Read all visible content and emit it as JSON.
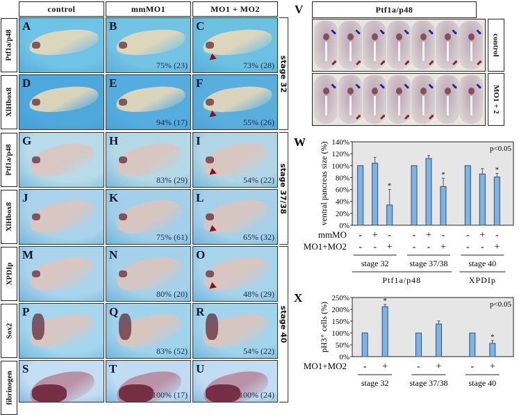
{
  "figure": {
    "column_headers": [
      "control",
      "mmMO1",
      "MO1 + MO2"
    ],
    "stage_labels": [
      "stage 32",
      "stage 37/38",
      "stage 40"
    ],
    "rows": [
      {
        "marker": "Ptf1a/p48",
        "stage": "stage 32",
        "panels": [
          {
            "letter": "A",
            "pct": "",
            "bg": "#6fc3e6",
            "arrow": false
          },
          {
            "letter": "B",
            "pct": "75% (23)",
            "bg": "#73c4e4",
            "arrow": false
          },
          {
            "letter": "C",
            "pct": "73% (28)",
            "bg": "#6cc0e2",
            "arrow": true
          }
        ]
      },
      {
        "marker": "XlHbox8",
        "stage": "stage 32",
        "panels": [
          {
            "letter": "D",
            "pct": "",
            "bg": "#4fa8dc",
            "arrow": false
          },
          {
            "letter": "E",
            "pct": "94% (17)",
            "bg": "#55acdf",
            "arrow": false
          },
          {
            "letter": "F",
            "pct": "55% (26)",
            "bg": "#5aaede",
            "arrow": true
          }
        ]
      },
      {
        "marker": "Ptf1a/p48",
        "stage": "stage 37/38",
        "panels": [
          {
            "letter": "G",
            "pct": "",
            "bg": "#b7dbe9",
            "arrow": false
          },
          {
            "letter": "H",
            "pct": "83% (29)",
            "bg": "#b3d8e6",
            "arrow": false
          },
          {
            "letter": "I",
            "pct": "54% (22)",
            "bg": "#b0d6e5",
            "arrow": true
          }
        ]
      },
      {
        "marker": "XlHbox8",
        "stage": "stage 37/38",
        "panels": [
          {
            "letter": "J",
            "pct": "",
            "bg": "#a8d3ea",
            "arrow": false
          },
          {
            "letter": "K",
            "pct": "75% (61)",
            "bg": "#a3d0e8",
            "arrow": false
          },
          {
            "letter": "L",
            "pct": "65% (32)",
            "bg": "#a6d1e9",
            "arrow": true
          }
        ]
      },
      {
        "marker": "XPDIp",
        "stage": "stage 40",
        "panels": [
          {
            "letter": "M",
            "pct": "",
            "bg": "#aad4ec",
            "arrow": false
          },
          {
            "letter": "N",
            "pct": "80% (20)",
            "bg": "#a5d1ea",
            "arrow": false
          },
          {
            "letter": "O",
            "pct": "48% (29)",
            "bg": "#a7d3eb",
            "arrow": true
          }
        ]
      },
      {
        "marker": "Sox2",
        "stage": "stage 40",
        "panels": [
          {
            "letter": "P",
            "pct": "",
            "bg": "#a4d6ee",
            "arrow": false
          },
          {
            "letter": "Q",
            "pct": "83% (52)",
            "bg": "#a0d3ec",
            "arrow": false
          },
          {
            "letter": "R",
            "pct": "54% (22)",
            "bg": "#a2d4ed",
            "arrow": false
          }
        ]
      },
      {
        "marker": "fibrinogen",
        "stage": "stage 40",
        "panels": [
          {
            "letter": "S",
            "pct": "",
            "bg": "#c4def3",
            "arrow": false
          },
          {
            "letter": "T",
            "pct": "100% (17)",
            "bg": "#c0dcf2",
            "arrow": false
          },
          {
            "letter": "U",
            "pct": "100% (24)",
            "bg": "#c2ddf2",
            "arrow": false
          }
        ]
      }
    ]
  },
  "panel_v": {
    "letter": "V",
    "title": "Ptf1a/p48",
    "rows": [
      "control",
      "MO1 + 2"
    ],
    "sections_per_row": 7
  },
  "chart_data": [
    {
      "id": "W",
      "type": "bar",
      "title": "",
      "letter": "W",
      "ylabel": "ventral pancreas size (%)",
      "ylim": [
        0,
        140
      ],
      "yticks": [
        "0%",
        "20%",
        "40%",
        "60%",
        "80%",
        "100%",
        "120%",
        "140%"
      ],
      "annotation": "p<0.05",
      "groups": [
        "stage 32",
        "stage 37/38",
        "stage 40"
      ],
      "supergroups": [
        {
          "label": "Ptf1a/p48",
          "span": [
            0,
            1
          ]
        },
        {
          "label": "XPDIp",
          "span": [
            2,
            2
          ]
        }
      ],
      "condition_rows": [
        {
          "label": "mmMO",
          "values": [
            "-",
            "+",
            "-",
            "-",
            "+",
            "-",
            "-",
            "+",
            "-"
          ]
        },
        {
          "label": "MO1+MO2",
          "values": [
            "-",
            "-",
            "+",
            "-",
            "-",
            "+",
            "-",
            "-",
            "+"
          ]
        }
      ],
      "values": [
        100,
        104,
        34,
        100,
        112,
        65,
        100,
        86,
        81
      ],
      "errors": [
        0,
        10,
        26,
        0,
        5,
        14,
        0,
        9,
        6
      ],
      "significant": [
        false,
        false,
        true,
        false,
        false,
        true,
        false,
        false,
        true
      ],
      "bar_color": "#7fb3e6",
      "grid": false
    },
    {
      "id": "X",
      "type": "bar",
      "title": "",
      "letter": "X",
      "ylabel": "pH3⁺ cells (%)",
      "ylim": [
        0,
        250
      ],
      "yticks": [
        "0%",
        "50%",
        "100%",
        "150%",
        "200%",
        "250%"
      ],
      "annotation": "p<0.05",
      "groups": [
        "stage 32",
        "stage 37/38",
        "stage 40"
      ],
      "condition_rows": [
        {
          "label": "MO1+MO2",
          "values": [
            "-",
            "+",
            "-",
            "+",
            "-",
            "+"
          ]
        }
      ],
      "values": [
        100,
        211,
        100,
        138,
        100,
        56
      ],
      "errors": [
        0,
        10,
        0,
        13,
        0,
        12
      ],
      "significant": [
        false,
        true,
        false,
        false,
        false,
        true
      ],
      "bar_color": "#7fb3e6",
      "grid": false
    }
  ]
}
